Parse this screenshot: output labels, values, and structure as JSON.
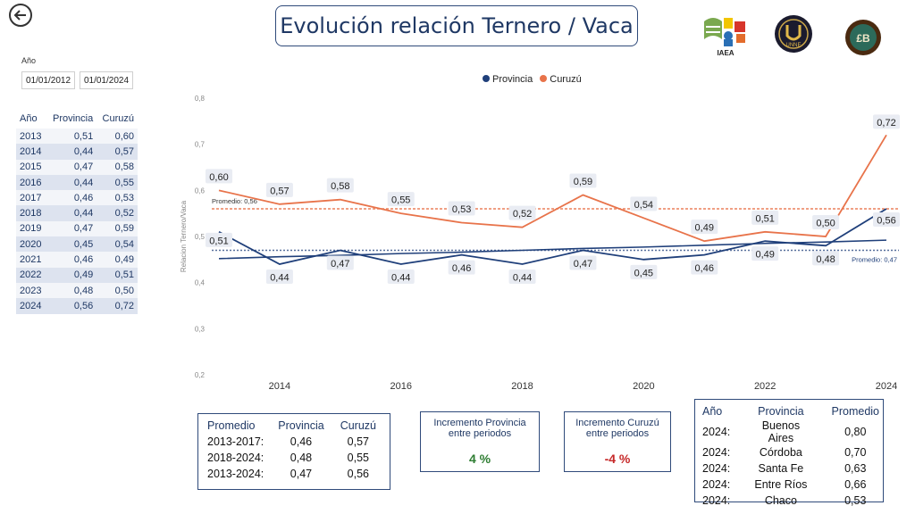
{
  "title": "Evolución relación Ternero / Vaca",
  "filters": {
    "label": "Año",
    "start": "01/01/2012",
    "end": "01/01/2024"
  },
  "logos": {
    "iaea_text": "IAEA",
    "unne_text": "UNNE"
  },
  "left_table": {
    "headers": [
      "Año",
      "Provincia",
      "Curuzú"
    ],
    "rows": [
      [
        "2013",
        "0,51",
        "0,60"
      ],
      [
        "2014",
        "0,44",
        "0,57"
      ],
      [
        "2015",
        "0,47",
        "0,58"
      ],
      [
        "2016",
        "0,44",
        "0,55"
      ],
      [
        "2017",
        "0,46",
        "0,53"
      ],
      [
        "2018",
        "0,44",
        "0,52"
      ],
      [
        "2019",
        "0,47",
        "0,59"
      ],
      [
        "2020",
        "0,45",
        "0,54"
      ],
      [
        "2021",
        "0,46",
        "0,49"
      ],
      [
        "2022",
        "0,49",
        "0,51"
      ],
      [
        "2023",
        "0,48",
        "0,50"
      ],
      [
        "2024",
        "0,56",
        "0,72"
      ]
    ]
  },
  "chart_data": {
    "type": "line",
    "ylabel": "Relacion Ternero/Vaca",
    "ylim": [
      0.2,
      0.8
    ],
    "yticks": [
      0.2,
      0.3,
      0.4,
      0.5,
      0.6,
      0.7,
      0.8
    ],
    "ytick_labels": [
      "0,2",
      "0,3",
      "0,4",
      "0,5",
      "0,6",
      "0,7",
      "0,8"
    ],
    "x": [
      2013,
      2014,
      2015,
      2016,
      2017,
      2018,
      2019,
      2020,
      2021,
      2022,
      2023,
      2024
    ],
    "xticks": [
      2014,
      2016,
      2018,
      2020,
      2022,
      2024
    ],
    "series": [
      {
        "name": "Provincia",
        "color": "#1f3f7a",
        "values": [
          0.51,
          0.44,
          0.47,
          0.44,
          0.46,
          0.44,
          0.47,
          0.45,
          0.46,
          0.49,
          0.48,
          0.56
        ],
        "labels": [
          "0,51",
          "0,44",
          "0,47",
          "0,44",
          "0,46",
          "0,44",
          "0,47",
          "0,45",
          "0,46",
          "0,49",
          "0,48",
          "0,56"
        ],
        "trend": [
          0.452,
          0.456,
          0.459,
          0.463,
          0.466,
          0.47,
          0.474,
          0.477,
          0.481,
          0.485,
          0.488,
          0.492
        ],
        "average": 0.47,
        "average_label": "Promedio: 0,47"
      },
      {
        "name": "Curuzú",
        "color": "#e8734a",
        "values": [
          0.6,
          0.57,
          0.58,
          0.55,
          0.53,
          0.52,
          0.59,
          0.54,
          0.49,
          0.51,
          0.5,
          0.72
        ],
        "labels": [
          "0,60",
          "0,57",
          "0,58",
          "0,55",
          "0,53",
          "0,52",
          "0,59",
          "0,54",
          "0,49",
          "0,51",
          "0,50",
          "0,72"
        ],
        "average": 0.56,
        "average_label": "Promedio: 0,56"
      }
    ]
  },
  "promedio_table": {
    "headers": [
      "Promedio",
      "Provincia",
      "Curuzú"
    ],
    "rows": [
      [
        "2013-2017:",
        "0,46",
        "0,57"
      ],
      [
        "2018-2024:",
        "0,48",
        "0,55"
      ],
      [
        "2013-2024:",
        "0,47",
        "0,56"
      ]
    ]
  },
  "kpi_provincia": {
    "label_line1": "Incremento Provincia",
    "label_line2": "entre periodos",
    "value": "4 %",
    "color": "#2e7d32"
  },
  "kpi_curuzu": {
    "label_line1": "Incremento Curuzú",
    "label_line2": "entre periodos",
    "value": "-4 %",
    "color": "#c62828"
  },
  "provincias_table": {
    "headers": [
      "Año",
      "Provincia",
      "Promedio"
    ],
    "rows": [
      [
        "2024:",
        "Buenos Aires",
        "0,80"
      ],
      [
        "2024:",
        "Córdoba",
        "0,70"
      ],
      [
        "2024:",
        "Santa Fe",
        "0,63"
      ],
      [
        "2024:",
        "Entre Ríos",
        "0,66"
      ],
      [
        "2024:",
        "Chaco",
        "0,53"
      ]
    ]
  }
}
